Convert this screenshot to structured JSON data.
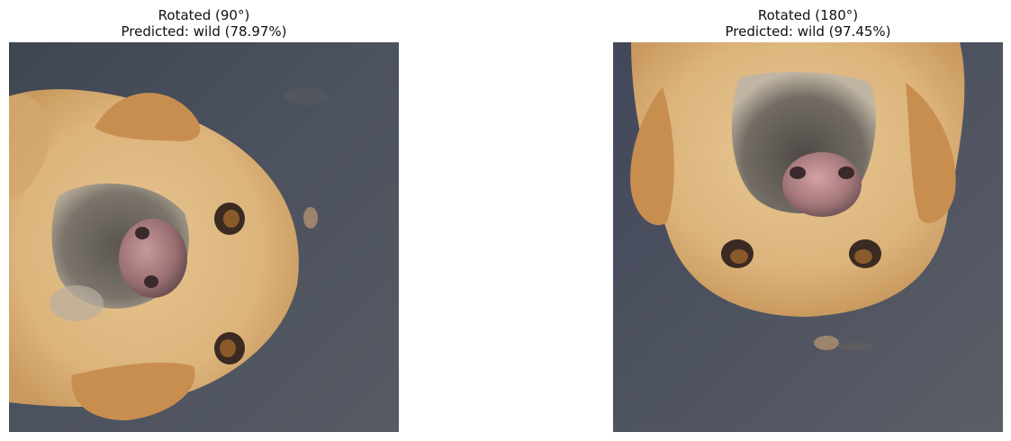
{
  "figure": {
    "panels": [
      {
        "title_line1": "Rotated (90°)",
        "title_line2": "Predicted: wild (78.97%)",
        "image_description": "dog-face-rotated-90"
      },
      {
        "title_line1": "Rotated (180°)",
        "title_line2": "Predicted: wild (97.45%)",
        "image_description": "dog-face-rotated-180"
      }
    ]
  }
}
